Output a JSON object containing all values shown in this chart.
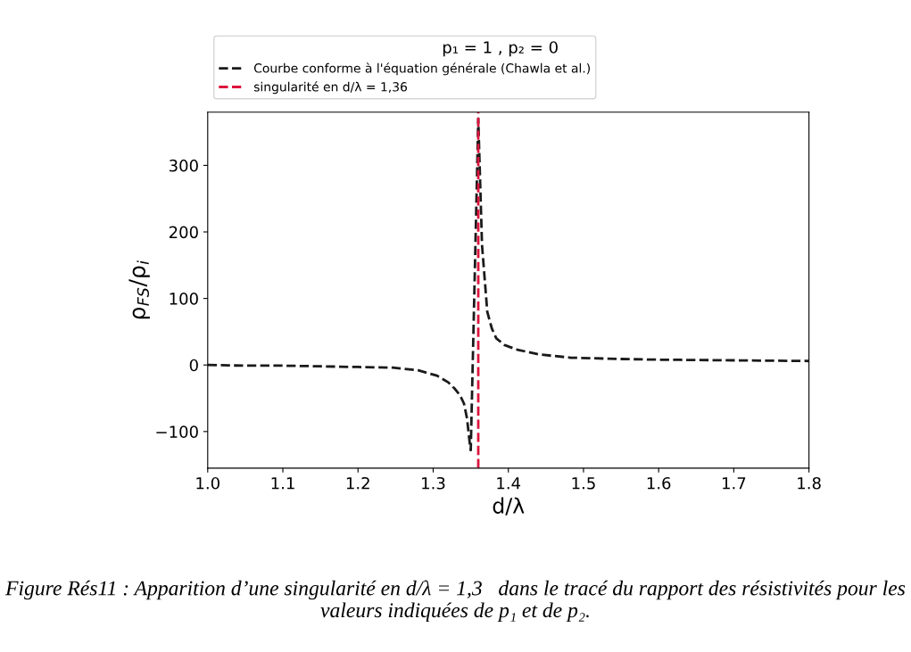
{
  "chart_data": {
    "type": "line",
    "legend_title": "p₁ = 1 , p₂ = 0",
    "xlabel": "d/λ",
    "ylabel": "ρ$_{FS}$/ρ$_{i}$",
    "series": [
      {
        "name": "Courbe conforme à l'équation générale (Chawla et al.)",
        "color": "#1a1a1a",
        "line_style": "dashed",
        "x": [
          1.0,
          1.05,
          1.1,
          1.15,
          1.2,
          1.246,
          1.28,
          1.305,
          1.32,
          1.329,
          1.336,
          1.341,
          1.345,
          1.349,
          1.35,
          1.355,
          1.36,
          1.365,
          1.372,
          1.378,
          1.384,
          1.395,
          1.412,
          1.44,
          1.483,
          1.55,
          1.6,
          1.7,
          1.8
        ],
        "values": [
          0,
          -1,
          -1,
          -2,
          -3,
          -4,
          -8,
          -16,
          -26,
          -36,
          -46,
          -58,
          -80,
          -121,
          -128,
          120,
          370,
          180,
          80,
          55,
          40,
          30,
          23,
          16,
          11,
          9,
          8,
          7,
          6
        ]
      }
    ],
    "xlim": [
      1.0,
      1.8
    ],
    "xticks": [
      {
        "value": 1.0,
        "label": "1.0"
      },
      1.1,
      1.2,
      1.3,
      1.4,
      1.5,
      1.6,
      1.7,
      1.8
    ],
    "ylim": [
      -155,
      380
    ],
    "yticks": [
      -100,
      0,
      100,
      200,
      300
    ],
    "ref_lines": [
      {
        "axis": "x",
        "value": 1.36,
        "label": "singularité en d/λ = 1,36",
        "color": "#dc143c",
        "line_style": "dashed"
      }
    ],
    "legend": "top",
    "grid": false,
    "annotations": [
      "Figure Rés11 : Apparition d’une singularité en d/λ = 1,3   dans le tracé du rapport des résistivités pour les valeurs indiquées de p₁ et de p₂."
    ]
  }
}
